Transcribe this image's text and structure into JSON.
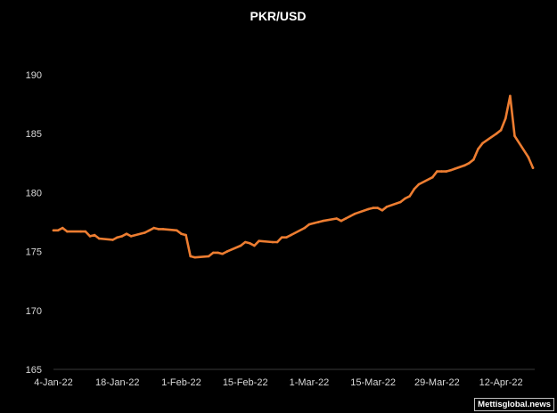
{
  "chart_data": {
    "type": "line",
    "title": "PKR/USD",
    "xlabel": "",
    "ylabel": "",
    "ylim": [
      165,
      190
    ],
    "yticks": [
      165,
      170,
      175,
      180,
      185,
      190
    ],
    "x_tick_labels": [
      "4-Jan-22",
      "18-Jan-22",
      "1-Feb-22",
      "15-Feb-22",
      "1-Mar-22",
      "15-Mar-22",
      "29-Mar-22",
      "12-Apr-22"
    ],
    "grid": false,
    "line_color": "#ED7D31",
    "series": [
      {
        "name": "",
        "points": [
          [
            "2022-01-04",
            176.8
          ],
          [
            "2022-01-05",
            176.8
          ],
          [
            "2022-01-06",
            177.0
          ],
          [
            "2022-01-07",
            176.7
          ],
          [
            "2022-01-10",
            176.7
          ],
          [
            "2022-01-11",
            176.7
          ],
          [
            "2022-01-12",
            176.3
          ],
          [
            "2022-01-13",
            176.4
          ],
          [
            "2022-01-14",
            176.1
          ],
          [
            "2022-01-17",
            176.0
          ],
          [
            "2022-01-18",
            176.2
          ],
          [
            "2022-01-19",
            176.3
          ],
          [
            "2022-01-20",
            176.5
          ],
          [
            "2022-01-21",
            176.3
          ],
          [
            "2022-01-24",
            176.6
          ],
          [
            "2022-01-25",
            176.8
          ],
          [
            "2022-01-26",
            177.0
          ],
          [
            "2022-01-27",
            176.9
          ],
          [
            "2022-01-28",
            176.9
          ],
          [
            "2022-01-31",
            176.8
          ],
          [
            "2022-02-01",
            176.5
          ],
          [
            "2022-02-02",
            176.4
          ],
          [
            "2022-02-03",
            174.6
          ],
          [
            "2022-02-04",
            174.5
          ],
          [
            "2022-02-07",
            174.6
          ],
          [
            "2022-02-08",
            174.9
          ],
          [
            "2022-02-09",
            174.9
          ],
          [
            "2022-02-10",
            174.8
          ],
          [
            "2022-02-11",
            175.0
          ],
          [
            "2022-02-14",
            175.5
          ],
          [
            "2022-02-15",
            175.8
          ],
          [
            "2022-02-16",
            175.7
          ],
          [
            "2022-02-17",
            175.5
          ],
          [
            "2022-02-18",
            175.9
          ],
          [
            "2022-02-21",
            175.8
          ],
          [
            "2022-02-22",
            175.8
          ],
          [
            "2022-02-23",
            176.2
          ],
          [
            "2022-02-24",
            176.2
          ],
          [
            "2022-02-25",
            176.4
          ],
          [
            "2022-02-28",
            177.0
          ],
          [
            "2022-03-01",
            177.3
          ],
          [
            "2022-03-02",
            177.4
          ],
          [
            "2022-03-03",
            177.5
          ],
          [
            "2022-03-04",
            177.6
          ],
          [
            "2022-03-07",
            177.8
          ],
          [
            "2022-03-08",
            177.6
          ],
          [
            "2022-03-09",
            177.8
          ],
          [
            "2022-03-10",
            178.0
          ],
          [
            "2022-03-11",
            178.2
          ],
          [
            "2022-03-14",
            178.6
          ],
          [
            "2022-03-15",
            178.7
          ],
          [
            "2022-03-16",
            178.7
          ],
          [
            "2022-03-17",
            178.5
          ],
          [
            "2022-03-18",
            178.8
          ],
          [
            "2022-03-21",
            179.2
          ],
          [
            "2022-03-22",
            179.5
          ],
          [
            "2022-03-23",
            179.7
          ],
          [
            "2022-03-24",
            180.3
          ],
          [
            "2022-03-25",
            180.7
          ],
          [
            "2022-03-28",
            181.3
          ],
          [
            "2022-03-29",
            181.8
          ],
          [
            "2022-03-30",
            181.8
          ],
          [
            "2022-03-31",
            181.8
          ],
          [
            "2022-04-01",
            181.9
          ],
          [
            "2022-04-04",
            182.3
          ],
          [
            "2022-04-05",
            182.5
          ],
          [
            "2022-04-06",
            182.8
          ],
          [
            "2022-04-07",
            183.7
          ],
          [
            "2022-04-08",
            184.2
          ],
          [
            "2022-04-11",
            185.0
          ],
          [
            "2022-04-12",
            185.3
          ],
          [
            "2022-04-13",
            186.3
          ],
          [
            "2022-04-14",
            188.2
          ],
          [
            "2022-04-15",
            184.8
          ],
          [
            "2022-04-18",
            183.0
          ],
          [
            "2022-04-19",
            182.1
          ]
        ]
      }
    ]
  },
  "watermark": "Mettisglobal.news"
}
